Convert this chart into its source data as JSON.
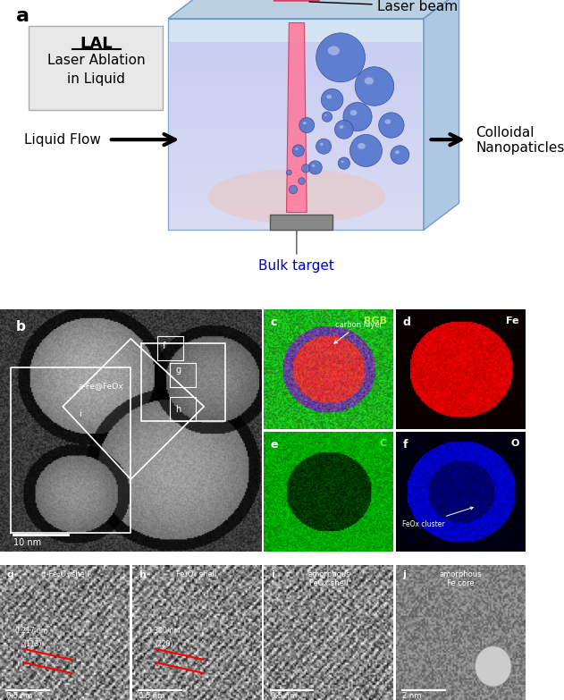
{
  "panel_a_label": "a",
  "panel_b_label": "b",
  "panel_c_label": "c",
  "panel_d_label": "d",
  "panel_e_label": "e",
  "panel_f_label": "f",
  "panel_g_label": "g",
  "panel_h_label": "h",
  "panel_i_label": "i",
  "panel_j_label": "j",
  "lal_title": "LAL",
  "lal_line1": "Laser Ablation",
  "lal_line2": "in Liquid",
  "laser_beam_text": "Laser beam",
  "liquid_flow_text": "Liquid Flow",
  "colloidal_text": "Colloidal\nNanopaticles",
  "bulk_target_text": "Bulk target",
  "rgb_text": "RGB",
  "carbon_layer_text": "carbon layer",
  "fe_text": "Fe",
  "c_text": "C",
  "o_text": "O",
  "feox_cluster_text": "FeOx cluster",
  "a_fefeox_text": "a-Fe@FeOx",
  "i_label_txt": "i",
  "f_label_txt": "f",
  "g_label_txt": "g",
  "h_label_txt": "h",
  "panel_g_title": "α-Fe₂O₃ shell",
  "panel_h_title": "Fe₃O₄ shell",
  "panel_i_title": "amorphous\nFeOx shell",
  "panel_j_title": "amorphous\nFe core",
  "g_spacing": "0.217 nm",
  "g_plane": "(113)",
  "h_spacing": "0.300 nm",
  "h_plane": "(220)",
  "scalebar_g": "0.5 nm",
  "scalebar_h": "0.5 nm",
  "scalebar_i": "0.5 nm",
  "scalebar_j": "2 nm",
  "scalebar_b": "10 nm",
  "bg_color": "#ffffff"
}
